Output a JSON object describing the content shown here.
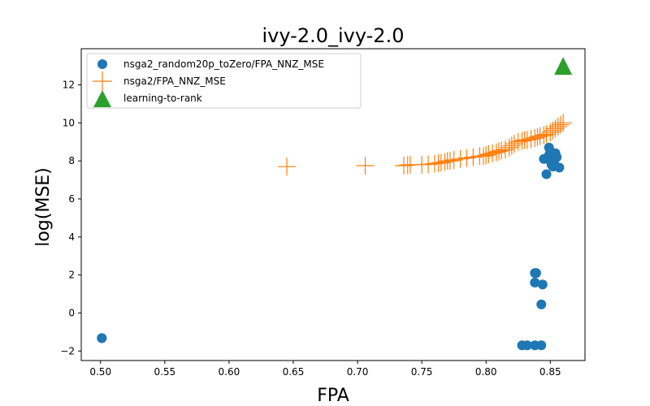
{
  "chart_data": {
    "type": "scatter",
    "title": "ivy-2.0_ivy-2.0",
    "xlabel": "FPA",
    "ylabel": "log(MSE)",
    "xlim": [
      0.485,
      0.877
    ],
    "ylim": [
      -2.5,
      13.9
    ],
    "xticks": [
      0.5,
      0.55,
      0.6,
      0.65,
      0.7,
      0.75,
      0.8,
      0.85
    ],
    "xtick_labels": [
      "0.50",
      "0.55",
      "0.60",
      "0.65",
      "0.70",
      "0.75",
      "0.80",
      "0.85"
    ],
    "yticks": [
      -2,
      0,
      2,
      4,
      6,
      8,
      10,
      12
    ],
    "ytick_labels": [
      "−2",
      "0",
      "2",
      "4",
      "6",
      "8",
      "10",
      "12"
    ],
    "grid": false,
    "legend_position": "top-left",
    "series": [
      {
        "name": "nsga2_random20p_toZero/FPA_NNZ_MSE",
        "marker": "circle",
        "color": "#1f77b4",
        "x": [
          0.501,
          0.501,
          0.828,
          0.832,
          0.838,
          0.843,
          0.838,
          0.838,
          0.839,
          0.844,
          0.843,
          0.847,
          0.845,
          0.849,
          0.85,
          0.852,
          0.853,
          0.855,
          0.849,
          0.851,
          0.857,
          0.854,
          0.85
        ],
        "y": [
          -1.32,
          -1.32,
          -1.7,
          -1.7,
          -1.7,
          -1.7,
          2.1,
          1.6,
          2.1,
          1.5,
          0.45,
          7.3,
          8.1,
          8.7,
          8.5,
          7.7,
          8.0,
          8.2,
          8.3,
          7.8,
          7.65,
          8.4,
          8.0
        ]
      },
      {
        "name": "nsga2/FPA_NNZ_MSE",
        "marker": "plus",
        "color": "#ff7f0e",
        "x": [
          0.645,
          0.706,
          0.736,
          0.739,
          0.741,
          0.75,
          0.755,
          0.76,
          0.763,
          0.765,
          0.768,
          0.77,
          0.772,
          0.775,
          0.78,
          0.785,
          0.79,
          0.795,
          0.798,
          0.8,
          0.802,
          0.805,
          0.808,
          0.81,
          0.812,
          0.815,
          0.818,
          0.82,
          0.822,
          0.825,
          0.828,
          0.83,
          0.832,
          0.835,
          0.838,
          0.84,
          0.842,
          0.845,
          0.847,
          0.85,
          0.852,
          0.854,
          0.856,
          0.858,
          0.86
        ],
        "y": [
          7.7,
          7.75,
          7.75,
          7.78,
          7.8,
          7.8,
          7.82,
          7.85,
          7.88,
          7.9,
          7.95,
          8.0,
          8.0,
          8.05,
          8.1,
          8.15,
          8.2,
          8.25,
          8.25,
          8.3,
          8.35,
          8.4,
          8.45,
          8.5,
          8.55,
          8.6,
          8.7,
          8.8,
          8.9,
          9.0,
          9.05,
          9.1,
          9.1,
          9.15,
          9.2,
          9.25,
          9.3,
          9.35,
          9.4,
          9.5,
          9.6,
          9.7,
          9.8,
          9.9,
          10.0
        ]
      },
      {
        "name": "learning-to-rank",
        "marker": "triangle",
        "color": "#2ca02c",
        "x": [
          0.86
        ],
        "y": [
          13.0
        ]
      }
    ]
  }
}
